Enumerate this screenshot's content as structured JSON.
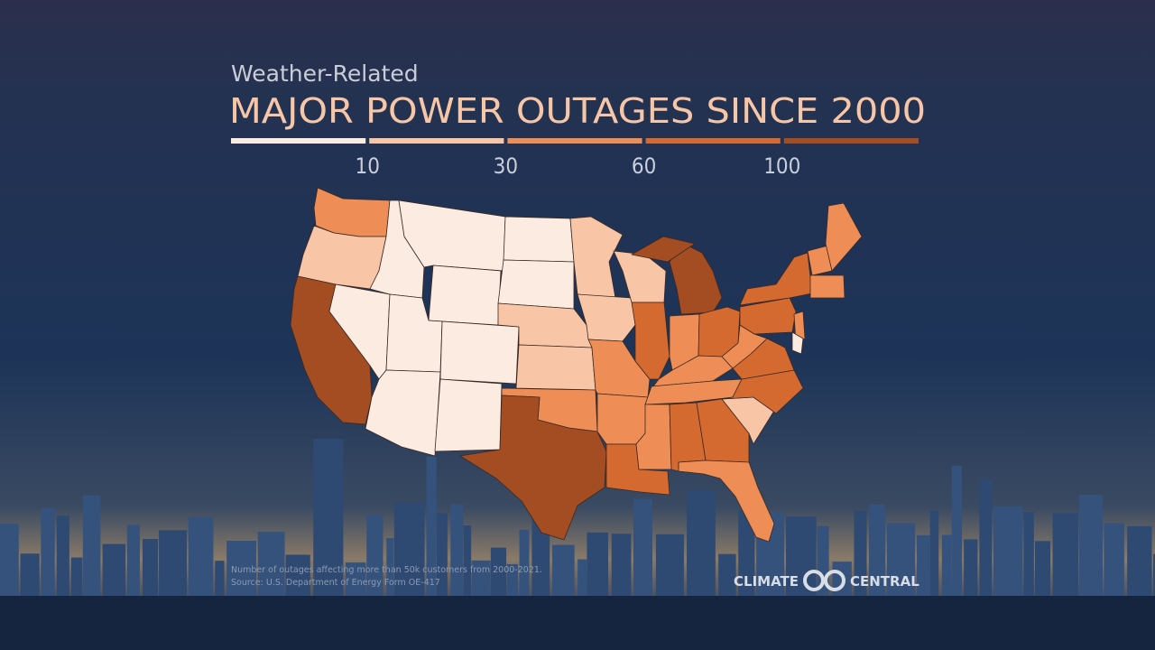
{
  "header": {
    "subtitle": "Weather-Related",
    "title": "MAJOR POWER OUTAGES SINCE 2000"
  },
  "legend": {
    "colors": [
      "#fcebe1",
      "#f8c6a6",
      "#ee8d55",
      "#d56a30",
      "#a44c22"
    ],
    "ticks": [
      10,
      30,
      60,
      100
    ]
  },
  "footnote": [
    "Number of outages affecting more than 50k customers from 2000-2021.",
    "Source: U.S. Department of Energy Form OE-417"
  ],
  "logo": {
    "left": "CLIMATE",
    "right": "CENTRAL"
  }
}
